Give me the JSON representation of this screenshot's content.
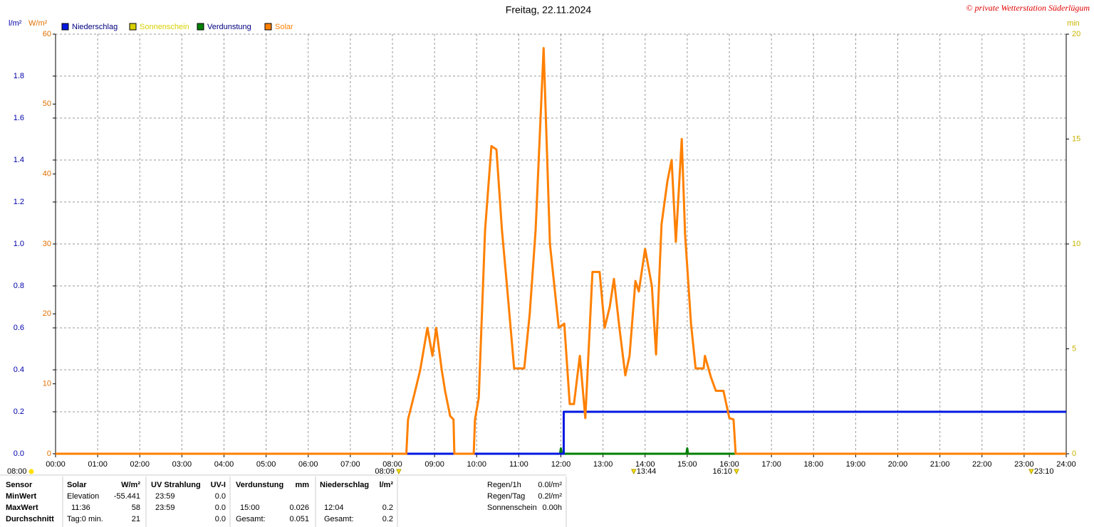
{
  "chart_data": {
    "type": "line",
    "title": "Freitag, 22.11.2024",
    "copyright": "© private Wetterstation Süderlügum",
    "ylabel": "l/m²",
    "y2label": "W/m²",
    "y3label": "min",
    "ycolor": "#0000aa",
    "y2color": "#e07000",
    "y3color": "#c8b400",
    "grid": true,
    "xlim": [
      0,
      24
    ],
    "xticks": [
      {
        "value": 0,
        "label": "00:00"
      },
      {
        "value": 1,
        "label": "01:00"
      },
      {
        "value": 2,
        "label": "02:00"
      },
      {
        "value": 3,
        "label": "03:00"
      },
      {
        "value": 4,
        "label": "04:00"
      },
      {
        "value": 5,
        "label": "05:00"
      },
      {
        "value": 6,
        "label": "06:00"
      },
      {
        "value": 7,
        "label": "07:00"
      },
      {
        "value": 8,
        "label": "08:00"
      },
      {
        "value": 9,
        "label": "09:00"
      },
      {
        "value": 10,
        "label": "10:00"
      },
      {
        "value": 11,
        "label": "11:00"
      },
      {
        "value": 12,
        "label": "12:00"
      },
      {
        "value": 13,
        "label": "13:00"
      },
      {
        "value": 14,
        "label": "14:00"
      },
      {
        "value": 15,
        "label": "15:00"
      },
      {
        "value": 16,
        "label": "16:00"
      },
      {
        "value": 17,
        "label": "17:00"
      },
      {
        "value": 18,
        "label": "18:00"
      },
      {
        "value": 19,
        "label": "19:00"
      },
      {
        "value": 20,
        "label": "20:00"
      },
      {
        "value": 21,
        "label": "21:00"
      },
      {
        "value": 22,
        "label": "22:00"
      },
      {
        "value": 23,
        "label": "23:00"
      },
      {
        "value": 24,
        "label": "24:00"
      }
    ],
    "ylim": [
      0,
      2
    ],
    "yticks": [
      {
        "value": 0,
        "label": "0.0"
      },
      0.2,
      0.4,
      0.6,
      0.8,
      {
        "value": 1,
        "label": "1.0"
      },
      1.2,
      1.4,
      1.6,
      1.8
    ],
    "y2lim": [
      0,
      60
    ],
    "y2ticks": [
      0,
      10,
      20,
      30,
      40,
      50,
      60
    ],
    "y3lim": [
      0,
      20
    ],
    "y3ticks": [
      0,
      5,
      10,
      15,
      20
    ],
    "series": [
      {
        "name": "Niederschlag",
        "color": "#0018e0",
        "axis": "y",
        "x": [
          0,
          12.067,
          12.067,
          24
        ],
        "values": [
          0,
          0,
          0.2,
          0.2
        ]
      },
      {
        "name": "Sonnenschein",
        "color": "#d8d000",
        "axis": "y3",
        "x": [],
        "values": []
      },
      {
        "name": "Verdunstung",
        "color": "#008000",
        "axis": "y",
        "x": [
          0,
          11.98,
          12.0,
          12.02,
          14.98,
          15.0,
          15.02,
          24
        ],
        "values": [
          0,
          0,
          0.026,
          0,
          0,
          0.026,
          0,
          0
        ]
      },
      {
        "name": "Solar",
        "color": "#ff8000",
        "axis": "y2",
        "x": [
          0,
          8.33,
          8.37,
          8.54,
          8.66,
          8.83,
          8.95,
          9.04,
          9.17,
          9.25,
          9.37,
          9.45,
          9.47,
          9.93,
          9.96,
          10.05,
          10.2,
          10.35,
          10.47,
          10.6,
          10.72,
          10.89,
          11.13,
          11.26,
          11.4,
          11.59,
          11.74,
          11.95,
          12.08,
          12.21,
          12.31,
          12.45,
          12.58,
          12.75,
          12.92,
          13.04,
          13.16,
          13.26,
          13.39,
          13.53,
          13.63,
          13.77,
          13.85,
          14.0,
          14.16,
          14.26,
          14.39,
          14.53,
          14.63,
          14.73,
          14.87,
          14.95,
          15.09,
          15.2,
          15.39,
          15.42,
          15.56,
          15.68,
          15.86,
          16.0,
          16.1,
          16.15,
          24
        ],
        "values": [
          0,
          0,
          4.9,
          9,
          12,
          18,
          14,
          18,
          12,
          9,
          5.4,
          4.9,
          0,
          0,
          4.9,
          8,
          32,
          44,
          43.5,
          32,
          24,
          12.2,
          12.2,
          20,
          32,
          58,
          30,
          18,
          18.6,
          7.1,
          7.1,
          14,
          5.1,
          26,
          26,
          18,
          21,
          25,
          18,
          11.2,
          14,
          24.7,
          23.2,
          29.3,
          24,
          14.2,
          32.8,
          39,
          42,
          30.3,
          45,
          31.3,
          18.6,
          12.2,
          12.2,
          14,
          11,
          9,
          9,
          5.1,
          4.9,
          0,
          0
        ]
      }
    ],
    "left_marker": "08:00",
    "markers": [
      {
        "x": 8.15,
        "label": "08:09"
      },
      {
        "x": 13.73,
        "label": "13:44"
      },
      {
        "x": 16.17,
        "label": "16:10"
      },
      {
        "x": 23.17,
        "label": "23:10"
      }
    ]
  },
  "table": {
    "rows": [
      [
        "Sensor",
        "Solar",
        "W/m²",
        "UV Strahlung",
        "UV-I",
        "Verdunstung",
        "mm",
        "Niederschlag",
        "l/m²"
      ],
      [
        "MinWert",
        "Elevation",
        "-55.441",
        "23:59",
        "0.0",
        null,
        null,
        null,
        null
      ],
      [
        "MaxWert",
        "11:36",
        "58",
        "23:59",
        "0.0",
        "15:00",
        "0.026",
        "12:04",
        "0.2"
      ],
      [
        "Durchschnitt",
        "Tag:0 min.",
        "21",
        null,
        "0.0",
        "Gesamt:",
        "0.051",
        "Gesamt:",
        "0.2"
      ]
    ],
    "summary": [
      [
        "Regen/1h",
        "0.0l/m²"
      ],
      [
        "Regen/Tag",
        "0.2l/m²"
      ],
      [
        "Sonnenschein",
        "0.00h"
      ]
    ]
  }
}
